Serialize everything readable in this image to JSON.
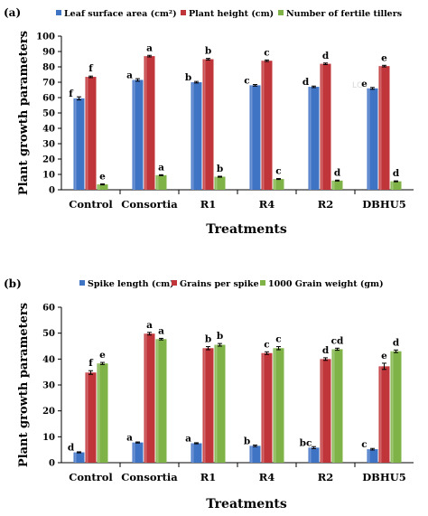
{
  "chart_data": [
    {
      "type": "bar",
      "panel_label": "(a)",
      "xlabel": "Treatments",
      "ylabel": "Plant growth parameters",
      "categories": [
        "Control",
        "Consortia",
        "R1",
        "R4",
        "R2",
        "DBHU5"
      ],
      "ylim": [
        0,
        100
      ],
      "yticks": [
        0,
        10,
        20,
        30,
        40,
        50,
        60,
        70,
        80,
        90,
        100
      ],
      "grid": false,
      "legend_position": "top",
      "watermark": "LC",
      "series": [
        {
          "name": "Leaf surface area (cm²)",
          "color": "#3f73c4",
          "values": [
            59.5,
            71.5,
            70,
            68,
            67,
            66
          ],
          "errors": [
            1,
            0.8,
            0.5,
            0.5,
            0.5,
            0.6
          ],
          "letters": [
            "f",
            "a",
            "b",
            "c",
            "d",
            "e"
          ]
        },
        {
          "name": "Plant height (cm)",
          "color": "#c0353a",
          "values": [
            73.5,
            87,
            85,
            84,
            82,
            80.5
          ],
          "errors": [
            0.5,
            0.5,
            0.5,
            0.5,
            0.5,
            0.5
          ],
          "letters": [
            "f",
            "a",
            "b",
            "c",
            "d",
            "e"
          ]
        },
        {
          "name": "Number of fertile tillers",
          "color": "#7fb347",
          "values": [
            3.5,
            9.5,
            8.5,
            7,
            6,
            5.5
          ],
          "errors": [
            0.3,
            0.3,
            0.3,
            0.3,
            0.3,
            0.3
          ],
          "letters": [
            "e",
            "a",
            "b",
            "c",
            "d",
            "d"
          ]
        }
      ]
    },
    {
      "type": "bar",
      "panel_label": "(b)",
      "xlabel": "Treatments",
      "ylabel": "Plant growth parameters",
      "categories": [
        "Control",
        "Consortia",
        "R1",
        "R4",
        "R2",
        "DBHU5"
      ],
      "ylim": [
        0,
        60
      ],
      "yticks": [
        0,
        10,
        20,
        30,
        40,
        50,
        60
      ],
      "grid": false,
      "legend_position": "top",
      "series": [
        {
          "name": "Spike length (cm)",
          "color": "#3f73c4",
          "values": [
            4,
            7.8,
            7.5,
            6.5,
            5.8,
            5.2
          ],
          "errors": [
            0.2,
            0.2,
            0.2,
            0.3,
            0.4,
            0.3
          ],
          "letters": [
            "d",
            "a",
            "a",
            "b",
            "bc",
            "c"
          ]
        },
        {
          "name": "Grains per spike",
          "color": "#c0353a",
          "values": [
            34.8,
            49.8,
            44.2,
            42.3,
            40,
            37.2
          ],
          "errors": [
            0.7,
            0.5,
            0.6,
            0.5,
            0.5,
            1.2
          ],
          "letters": [
            "f",
            "a",
            "b",
            "c",
            "d",
            "e"
          ]
        },
        {
          "name": "1000 Grain weight (gm)",
          "color": "#7fb347",
          "values": [
            38.3,
            47.7,
            45.5,
            44.2,
            43.8,
            43
          ],
          "errors": [
            0.4,
            0.3,
            0.5,
            0.6,
            0.4,
            0.5
          ],
          "letters": [
            "e",
            "a",
            "b",
            "c",
            "cd",
            "d"
          ]
        }
      ]
    }
  ]
}
